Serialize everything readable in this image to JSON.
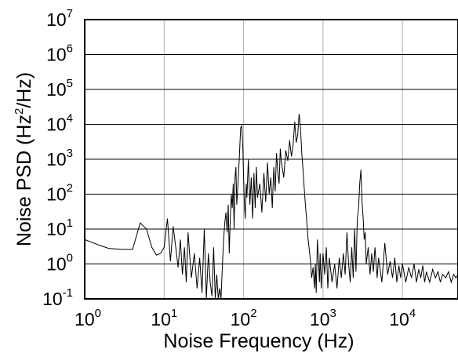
{
  "chart_data": {
    "type": "line",
    "title": "",
    "xlabel": "Noise Frequency (Hz)",
    "ylabel_main": "Noise PSD (Hz",
    "ylabel_sup": "2",
    "ylabel_rest": "/Hz)",
    "x_scale": "log",
    "y_scale": "log",
    "xlim": [
      1,
      50000
    ],
    "ylim": [
      0.1,
      10000000
    ],
    "grid": true,
    "legend": "none",
    "x_ticks": [
      {
        "base": "10",
        "exp": "0",
        "value": 1
      },
      {
        "base": "10",
        "exp": "1",
        "value": 10
      },
      {
        "base": "10",
        "exp": "2",
        "value": 100
      },
      {
        "base": "10",
        "exp": "3",
        "value": 1000
      },
      {
        "base": "10",
        "exp": "4",
        "value": 10000
      }
    ],
    "y_ticks": [
      {
        "base": "10",
        "exp": "-1",
        "value": 0.1
      },
      {
        "base": "10",
        "exp": "0",
        "value": 1
      },
      {
        "base": "10",
        "exp": "1",
        "value": 10
      },
      {
        "base": "10",
        "exp": "2",
        "value": 100
      },
      {
        "base": "10",
        "exp": "3",
        "value": 1000
      },
      {
        "base": "10",
        "exp": "4",
        "value": 10000
      },
      {
        "base": "10",
        "exp": "5",
        "value": 100000
      },
      {
        "base": "10",
        "exp": "6",
        "value": 1000000
      },
      {
        "base": "10",
        "exp": "7",
        "value": 10000000
      }
    ],
    "series": [
      {
        "color": "#000000",
        "x": [
          1,
          1.5,
          2,
          3,
          4,
          5,
          6,
          7,
          8,
          9,
          10,
          11,
          12,
          13,
          14,
          15,
          16,
          17,
          18,
          19,
          20,
          22,
          24,
          26,
          28,
          30,
          32,
          34,
          36,
          38,
          40,
          42,
          44,
          46,
          48,
          50,
          52,
          54,
          56,
          58,
          60,
          62,
          64,
          66,
          68,
          70,
          72,
          74,
          76,
          78,
          80,
          82,
          85,
          88,
          90,
          92,
          95,
          98,
          100,
          102,
          105,
          108,
          110,
          115,
          120,
          125,
          130,
          135,
          140,
          145,
          150,
          160,
          170,
          180,
          190,
          200,
          210,
          220,
          230,
          240,
          250,
          260,
          270,
          280,
          290,
          300,
          320,
          340,
          360,
          380,
          400,
          420,
          440,
          460,
          480,
          500,
          520,
          540,
          560,
          580,
          600,
          620,
          650,
          680,
          700,
          720,
          750,
          780,
          800,
          820,
          850,
          880,
          900,
          920,
          950,
          980,
          1000,
          1050,
          1100,
          1150,
          1200,
          1300,
          1400,
          1500,
          1600,
          1700,
          1800,
          1900,
          2000,
          2100,
          2200,
          2300,
          2400,
          2500,
          2600,
          2700,
          2800,
          2900,
          3000,
          3100,
          3200,
          3300,
          3400,
          3500,
          3700,
          3900,
          4100,
          4300,
          4500,
          4800,
          5000,
          5500,
          6000,
          6500,
          7000,
          7500,
          8000,
          8500,
          9000,
          9500,
          10000,
          11000,
          12000,
          13000,
          14000,
          15000,
          16000,
          17000,
          18000,
          19000,
          20000,
          22000,
          24000,
          26000,
          28000,
          30000,
          32000,
          35000,
          38000,
          41000,
          44000,
          47000,
          50000
        ],
        "y": [
          5,
          3.5,
          2.8,
          2.6,
          2.6,
          15,
          10,
          3,
          1.8,
          2,
          3,
          20,
          1.2,
          12,
          3,
          0.8,
          5,
          0.5,
          3,
          0.3,
          8,
          0.4,
          2,
          0.2,
          1.5,
          0.15,
          10,
          0.1,
          2,
          0.3,
          0.12,
          3,
          0.1,
          0.5,
          0.1,
          0.2,
          0.1,
          0.8,
          5,
          15,
          30,
          8,
          50,
          2,
          20,
          100,
          40,
          200,
          10,
          300,
          600,
          50,
          200,
          900,
          3000,
          8000,
          9000,
          2000,
          300,
          60,
          20,
          200,
          80,
          1000,
          50,
          300,
          20,
          400,
          40,
          600,
          80,
          200,
          30,
          400,
          60,
          800,
          100,
          300,
          40,
          600,
          120,
          1500,
          400,
          200,
          2000,
          800,
          300,
          1800,
          900,
          3500,
          1200,
          2500,
          12000,
          3000,
          5000,
          20000,
          8000,
          1500,
          500,
          150,
          50,
          20,
          5,
          2,
          1,
          0.4,
          0.8,
          0.2,
          1,
          0.15,
          5,
          1,
          0.3,
          2,
          0.2,
          0.8,
          2,
          0.5,
          3,
          0.2,
          1.5,
          0.3,
          1,
          0.2,
          1.5,
          0.4,
          2,
          0.5,
          8,
          1,
          0.3,
          3,
          0.4,
          10,
          0.6,
          20,
          40,
          200,
          500,
          60,
          20,
          5,
          8,
          1,
          3,
          0.5,
          2,
          0.6,
          3,
          0.4,
          1.5,
          0.3,
          4,
          0.5,
          1.2,
          0.4,
          1.5,
          0.3,
          0.9,
          0.4,
          1,
          0.3,
          0.8,
          0.4,
          1,
          0.3,
          0.7,
          0.4,
          0.9,
          0.3,
          0.6,
          0.3,
          0.7,
          0.4,
          0.6,
          0.3,
          0.5,
          0.4,
          0.6,
          0.3,
          0.5,
          0.4,
          0.5
        ]
      }
    ]
  }
}
